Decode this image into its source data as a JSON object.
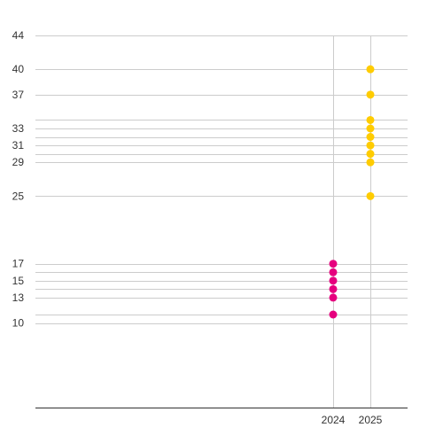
{
  "chart_data": {
    "type": "scatter",
    "title": "",
    "xlabel": "",
    "ylabel": "",
    "x_ticks": [
      2024,
      2025
    ],
    "y_ticks": [
      10,
      13,
      15,
      17,
      25,
      29,
      31,
      33,
      37,
      40,
      44
    ],
    "ylim": [
      0,
      44
    ],
    "grid": true,
    "series": [
      {
        "color": "#e6007e",
        "points": [
          {
            "x": 2024,
            "y": 11
          },
          {
            "x": 2024,
            "y": 13
          },
          {
            "x": 2024,
            "y": 14
          },
          {
            "x": 2024,
            "y": 15
          },
          {
            "x": 2024,
            "y": 16
          },
          {
            "x": 2024,
            "y": 17
          }
        ]
      },
      {
        "color": "#ffcc00",
        "points": [
          {
            "x": 2025,
            "y": 25
          },
          {
            "x": 2025,
            "y": 29
          },
          {
            "x": 2025,
            "y": 30
          },
          {
            "x": 2025,
            "y": 31
          },
          {
            "x": 2025,
            "y": 32
          },
          {
            "x": 2025,
            "y": 33
          },
          {
            "x": 2025,
            "y": 34
          },
          {
            "x": 2025,
            "y": 37
          },
          {
            "x": 2025,
            "y": 40
          }
        ]
      }
    ]
  }
}
